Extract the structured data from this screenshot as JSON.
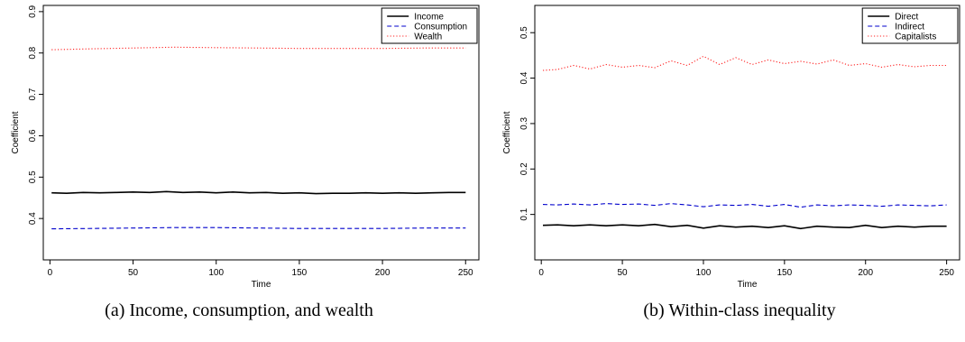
{
  "chart_data": [
    {
      "type": "line",
      "caption": "(a) Income, consumption, and wealth",
      "xlabel": "Time",
      "ylabel": "Coefficient",
      "xlim": [
        -4,
        258
      ],
      "ylim": [
        0.3,
        0.915
      ],
      "xticks": [
        "0",
        "50",
        "100",
        "150",
        "200",
        "250"
      ],
      "yticks": [
        "0.4",
        "0.5",
        "0.6",
        "0.7",
        "0.8",
        "0.9"
      ],
      "legend_position": "top-right",
      "series": [
        {
          "name": "Income",
          "color": "#000000",
          "dash": "solid",
          "x": [
            1,
            10,
            20,
            30,
            40,
            50,
            60,
            70,
            80,
            90,
            100,
            110,
            120,
            130,
            140,
            150,
            160,
            170,
            180,
            190,
            200,
            210,
            220,
            230,
            240,
            250
          ],
          "y": [
            0.462,
            0.461,
            0.463,
            0.462,
            0.463,
            0.464,
            0.463,
            0.465,
            0.463,
            0.464,
            0.462,
            0.464,
            0.462,
            0.463,
            0.461,
            0.462,
            0.46,
            0.461,
            0.461,
            0.462,
            0.461,
            0.462,
            0.461,
            0.462,
            0.463,
            0.463
          ]
        },
        {
          "name": "Consumption",
          "color": "#0000cc",
          "dash": "dashed",
          "x": [
            1,
            25,
            50,
            75,
            100,
            125,
            150,
            175,
            200,
            225,
            250
          ],
          "y": [
            0.375,
            0.376,
            0.377,
            0.378,
            0.378,
            0.377,
            0.376,
            0.376,
            0.376,
            0.377,
            0.377
          ]
        },
        {
          "name": "Wealth",
          "color": "#ff2020",
          "dash": "dotted",
          "x": [
            1,
            25,
            50,
            75,
            100,
            125,
            150,
            175,
            200,
            225,
            250
          ],
          "y": [
            0.808,
            0.81,
            0.812,
            0.814,
            0.813,
            0.812,
            0.811,
            0.811,
            0.811,
            0.812,
            0.812
          ]
        }
      ]
    },
    {
      "type": "line",
      "caption": "(b) Within-class inequality",
      "xlabel": "Time",
      "ylabel": "Coefficient",
      "xlim": [
        -4,
        258
      ],
      "ylim": [
        0.0,
        0.56
      ],
      "xticks": [
        "0",
        "50",
        "100",
        "150",
        "200",
        "250"
      ],
      "yticks": [
        "0.1",
        "0.2",
        "0.3",
        "0.4",
        "0.5"
      ],
      "legend_position": "top-right",
      "series": [
        {
          "name": "Direct",
          "color": "#000000",
          "dash": "solid",
          "x": [
            1,
            10,
            20,
            30,
            40,
            50,
            60,
            70,
            80,
            90,
            100,
            110,
            120,
            130,
            140,
            150,
            160,
            170,
            180,
            190,
            200,
            210,
            220,
            230,
            240,
            250
          ],
          "y": [
            0.076,
            0.077,
            0.075,
            0.077,
            0.075,
            0.077,
            0.075,
            0.078,
            0.073,
            0.076,
            0.07,
            0.075,
            0.072,
            0.074,
            0.071,
            0.075,
            0.069,
            0.074,
            0.072,
            0.071,
            0.076,
            0.071,
            0.074,
            0.072,
            0.074,
            0.074
          ]
        },
        {
          "name": "Indirect",
          "color": "#0000cc",
          "dash": "dashed",
          "x": [
            1,
            10,
            20,
            30,
            40,
            50,
            60,
            70,
            80,
            90,
            100,
            110,
            120,
            130,
            140,
            150,
            160,
            170,
            180,
            190,
            200,
            210,
            220,
            230,
            240,
            250
          ],
          "y": [
            0.122,
            0.121,
            0.123,
            0.121,
            0.124,
            0.122,
            0.123,
            0.12,
            0.124,
            0.121,
            0.117,
            0.121,
            0.12,
            0.122,
            0.118,
            0.122,
            0.116,
            0.121,
            0.119,
            0.121,
            0.12,
            0.118,
            0.121,
            0.12,
            0.119,
            0.121
          ]
        },
        {
          "name": "Capitalists",
          "color": "#ff2020",
          "dash": "dotted",
          "x": [
            1,
            10,
            20,
            30,
            40,
            50,
            60,
            70,
            80,
            90,
            100,
            110,
            120,
            130,
            140,
            150,
            160,
            170,
            180,
            190,
            200,
            210,
            220,
            230,
            240,
            250
          ],
          "y": [
            0.417,
            0.419,
            0.428,
            0.42,
            0.43,
            0.424,
            0.428,
            0.423,
            0.438,
            0.428,
            0.448,
            0.43,
            0.445,
            0.43,
            0.44,
            0.432,
            0.437,
            0.431,
            0.44,
            0.428,
            0.432,
            0.424,
            0.43,
            0.425,
            0.428,
            0.428
          ]
        }
      ]
    }
  ]
}
